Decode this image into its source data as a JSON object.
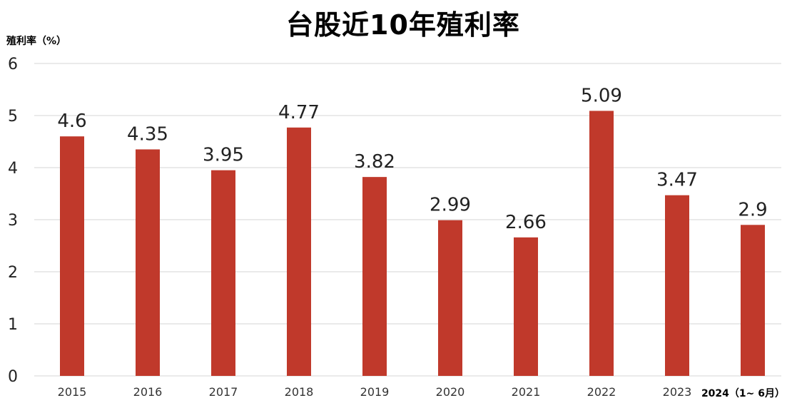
{
  "chart_data": {
    "type": "bar",
    "title": "台股近10年殖利率",
    "ylabel": "殖利率（%）",
    "xlabel": "",
    "categories": [
      "2015",
      "2016",
      "2017",
      "2018",
      "2019",
      "2020",
      "2021",
      "2022",
      "2023",
      "2024（1~ 6月）"
    ],
    "values": [
      4.6,
      4.35,
      3.95,
      4.77,
      3.82,
      2.99,
      2.66,
      5.09,
      3.47,
      2.9
    ],
    "value_labels": [
      "4.6",
      "4.35",
      "3.95",
      "4.77",
      "3.82",
      "2.99",
      "2.66",
      "5.09",
      "3.47",
      "2.9"
    ],
    "yticks": [
      "0",
      "1",
      "2",
      "3",
      "4",
      "5",
      "6"
    ],
    "ylim": [
      0,
      6
    ],
    "grid": true,
    "legend": "none",
    "bar_color": "#c0392b"
  }
}
